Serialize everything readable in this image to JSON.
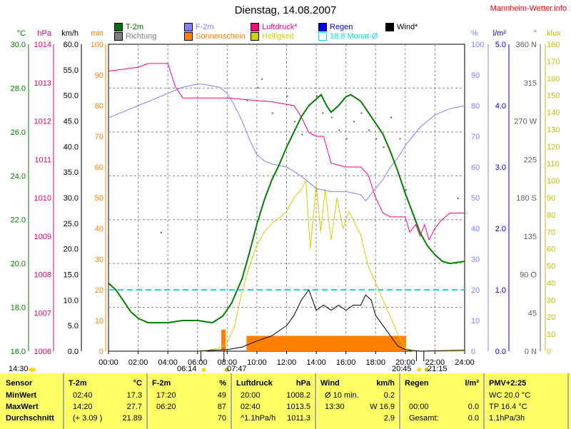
{
  "title": "Dienstag, 14.08.2007",
  "brand": "Mannheim-Wetter.info",
  "legend": [
    {
      "label": "T-2m",
      "color": "#007000"
    },
    {
      "label": "Richtung",
      "color": "#808080"
    },
    {
      "label": "F-2m",
      "color": "#8080ff"
    },
    {
      "label": "Sonnenschein",
      "color": "#ff8000"
    },
    {
      "label": "Luftdruck*",
      "color": "#ff0080"
    },
    {
      "label": "Helligkeit",
      "color": "#d0d000"
    },
    {
      "label": "Regen",
      "color": "#0000ff"
    },
    {
      "label": "18.8 Monat-Ø",
      "color": "#00e0e0"
    },
    {
      "label": "Wind*",
      "color": "#000000"
    }
  ],
  "axes": {
    "celsius": {
      "unit": "°C",
      "ticks": [
        "30.0",
        "28.0",
        "26.0",
        "24.0",
        "22.0",
        "20.0",
        "18.0",
        "16.0"
      ],
      "color": "#008000"
    },
    "hpa": {
      "unit": "hPa",
      "ticks": [
        "1014",
        "1013",
        "1012",
        "1011",
        "1010",
        "1009",
        "1008",
        "1007",
        "1006"
      ],
      "color": "#e00070"
    },
    "kmh": {
      "unit": "km/h",
      "ticks": [
        "60.0",
        "55.0",
        "50.0",
        "45.0",
        "40.0",
        "35.0",
        "30.0",
        "25.0",
        "20.0",
        "15.0",
        "10.0",
        "5.0",
        "0.0"
      ],
      "color": "#000000"
    },
    "min": {
      "unit": "min",
      "ticks": [
        "100",
        "90",
        "80",
        "70",
        "60",
        "50",
        "40",
        "30",
        "20",
        "10",
        "0"
      ],
      "color": "#ff8000"
    },
    "pct": {
      "unit": "%",
      "ticks": [
        "100",
        "90",
        "80",
        "70",
        "60",
        "50",
        "40",
        "30",
        "20",
        "10",
        "0"
      ],
      "color": "#8080ff"
    },
    "lm2": {
      "unit": "l/m²",
      "ticks": [
        "5.0",
        "4.0",
        "3.0",
        "2.0",
        "1.0",
        "0.0"
      ],
      "color": "#0000d0"
    },
    "deg": {
      "unit": "°",
      "ticks": [
        "360 N",
        "315",
        "270 W",
        "225",
        "180 S",
        "135",
        "90 O",
        "45",
        "0 N"
      ],
      "color": "#606060"
    },
    "klux": {
      "unit": "klux",
      "ticks": [
        "180",
        "170",
        "160",
        "150",
        "140",
        "130",
        "120",
        "110",
        "100",
        "90",
        "80",
        "70",
        "60",
        "50",
        "40",
        "30",
        "20",
        "10",
        "0"
      ],
      "color": "#c0c000"
    },
    "x_ticks": [
      "00:00",
      "02:00",
      "04:00",
      "06:00",
      "08:00",
      "10:00",
      "12:00",
      "14:00",
      "16:00",
      "18:00",
      "20:00",
      "22:00",
      "24:00"
    ]
  },
  "sun": {
    "now": "14:30",
    "sunrise": "06:14",
    "civil_am": "07:47",
    "sunset": "20:45",
    "civil_pm": "21:15"
  },
  "chart_data": {
    "type": "line",
    "title": "Dienstag, 14.08.2007",
    "xlim": [
      0,
      24
    ],
    "series": [
      {
        "name": "T-2m",
        "unit": "°C",
        "ylim": [
          16,
          30
        ],
        "points": [
          [
            0,
            19.1
          ],
          [
            0.5,
            18.8
          ],
          [
            1,
            18.3
          ],
          [
            1.5,
            17.8
          ],
          [
            2,
            17.5
          ],
          [
            2.67,
            17.3
          ],
          [
            4,
            17.3
          ],
          [
            5,
            17.4
          ],
          [
            6,
            17.4
          ],
          [
            7,
            17.3
          ],
          [
            7.7,
            17.6
          ],
          [
            8.3,
            18.2
          ],
          [
            9,
            19.3
          ],
          [
            9.5,
            20.5
          ],
          [
            10,
            21.8
          ],
          [
            10.5,
            22.9
          ],
          [
            11,
            23.8
          ],
          [
            11.5,
            24.5
          ],
          [
            12,
            25.3
          ],
          [
            12.5,
            26
          ],
          [
            13,
            26.7
          ],
          [
            13.5,
            27.2
          ],
          [
            14,
            27.5
          ],
          [
            14.33,
            27.7
          ],
          [
            14.7,
            27.2
          ],
          [
            15,
            26.9
          ],
          [
            15.5,
            27.2
          ],
          [
            16,
            27.6
          ],
          [
            16.33,
            27.7
          ],
          [
            17,
            27.4
          ],
          [
            17.5,
            26.9
          ],
          [
            18,
            26.4
          ],
          [
            18.5,
            25.9
          ],
          [
            19,
            25.1
          ],
          [
            19.5,
            24.2
          ],
          [
            20,
            23.2
          ],
          [
            20.5,
            22.3
          ],
          [
            21,
            21.4
          ],
          [
            21.5,
            20.8
          ],
          [
            22,
            20.4
          ],
          [
            22.5,
            20.1
          ],
          [
            23,
            20
          ],
          [
            24,
            20.1
          ]
        ]
      },
      {
        "name": "F-2m",
        "unit": "%",
        "ylim": [
          0,
          100
        ],
        "points": [
          [
            0,
            76
          ],
          [
            1,
            78
          ],
          [
            2,
            80
          ],
          [
            3,
            82
          ],
          [
            4,
            84
          ],
          [
            5,
            86
          ],
          [
            6,
            87
          ],
          [
            6.33,
            87
          ],
          [
            7.5,
            86
          ],
          [
            8,
            84
          ],
          [
            8.5,
            80
          ],
          [
            9,
            75
          ],
          [
            9.5,
            69
          ],
          [
            10,
            64
          ],
          [
            10.5,
            62
          ],
          [
            11,
            61
          ],
          [
            12,
            60
          ],
          [
            13,
            57
          ],
          [
            14,
            53
          ],
          [
            15,
            52
          ],
          [
            16,
            52
          ],
          [
            17,
            51
          ],
          [
            17.33,
            49
          ],
          [
            18,
            53
          ],
          [
            18.5,
            56
          ],
          [
            19,
            60
          ],
          [
            19.5,
            63
          ],
          [
            20,
            67
          ],
          [
            20.5,
            70
          ],
          [
            21,
            73
          ],
          [
            21.5,
            75
          ],
          [
            22,
            77
          ],
          [
            23,
            79
          ],
          [
            24,
            80
          ]
        ]
      },
      {
        "name": "Luftdruck",
        "unit": "hPa",
        "ylim": [
          1006,
          1014
        ],
        "points": [
          [
            0,
            1013.3
          ],
          [
            2,
            1013.4
          ],
          [
            2.67,
            1013.5
          ],
          [
            4,
            1013.5
          ],
          [
            4.5,
            1012.9
          ],
          [
            5,
            1012.6
          ],
          [
            8,
            1012.6
          ],
          [
            11,
            1012.5
          ],
          [
            12.5,
            1012.4
          ],
          [
            13,
            1012.1
          ],
          [
            13.5,
            1011.7
          ],
          [
            14,
            1011.6
          ],
          [
            14.5,
            1011.6
          ],
          [
            15,
            1010.9
          ],
          [
            16,
            1010.8
          ],
          [
            17,
            1010.8
          ],
          [
            17.5,
            1010.6
          ],
          [
            18,
            1010
          ],
          [
            18.5,
            1009.6
          ],
          [
            19,
            1009.5
          ],
          [
            20,
            1009.5
          ],
          [
            20.3,
            1009.1
          ],
          [
            20.7,
            1009.3
          ],
          [
            21,
            1009
          ],
          [
            21.3,
            1009.3
          ],
          [
            21.6,
            1008.9
          ],
          [
            22,
            1009.2
          ],
          [
            22.4,
            1009.4
          ],
          [
            23,
            1009.6
          ],
          [
            24,
            1009.6
          ]
        ]
      },
      {
        "name": "Wind",
        "unit": "km/h",
        "ylim": [
          0,
          60
        ],
        "points": [
          [
            0,
            0
          ],
          [
            6,
            0
          ],
          [
            7,
            0.2
          ],
          [
            8,
            0.3
          ],
          [
            9,
            0.8
          ],
          [
            10,
            2
          ],
          [
            11,
            3
          ],
          [
            12,
            5
          ],
          [
            12.5,
            7
          ],
          [
            13,
            10
          ],
          [
            13.5,
            12
          ],
          [
            14,
            8
          ],
          [
            14.5,
            9
          ],
          [
            15,
            8
          ],
          [
            15.5,
            9
          ],
          [
            16,
            8
          ],
          [
            16.5,
            9
          ],
          [
            17,
            9
          ],
          [
            17.33,
            11
          ],
          [
            17.7,
            10
          ],
          [
            18,
            7
          ],
          [
            18.5,
            5
          ],
          [
            19,
            3
          ],
          [
            19.5,
            1
          ],
          [
            20,
            0.3
          ],
          [
            21,
            0
          ],
          [
            24,
            0.2
          ]
        ]
      },
      {
        "name": "Helligkeit",
        "unit": "klux",
        "ylim": [
          0,
          180
        ],
        "points": [
          [
            0,
            0
          ],
          [
            6.5,
            0
          ],
          [
            7.5,
            2
          ],
          [
            8,
            5
          ],
          [
            8.5,
            15
          ],
          [
            9,
            35
          ],
          [
            9.5,
            50
          ],
          [
            10,
            62
          ],
          [
            10.5,
            70
          ],
          [
            11,
            75
          ],
          [
            11.5,
            78
          ],
          [
            12,
            82
          ],
          [
            12.5,
            90
          ],
          [
            13,
            95
          ],
          [
            13.3,
            100
          ],
          [
            13.6,
            60
          ],
          [
            14,
            98
          ],
          [
            14.3,
            70
          ],
          [
            14.6,
            95
          ],
          [
            15,
            65
          ],
          [
            15.4,
            90
          ],
          [
            15.8,
            72
          ],
          [
            16.2,
            82
          ],
          [
            16.6,
            75
          ],
          [
            17,
            68
          ],
          [
            17.5,
            50
          ],
          [
            18,
            40
          ],
          [
            18.5,
            30
          ],
          [
            19,
            20
          ],
          [
            19.5,
            10
          ],
          [
            20,
            2
          ],
          [
            20.5,
            0
          ],
          [
            24,
            0
          ]
        ]
      }
    ],
    "sunshine_min": {
      "unit": "min",
      "points": [
        [
          7.6,
          7
        ],
        [
          7.8,
          7
        ],
        [
          9.3,
          5
        ],
        [
          20,
          5
        ]
      ]
    },
    "monthly_mean_c": 18.8,
    "direction_deg": [
      [
        3.5,
        140
      ],
      [
        9.3,
        295
      ],
      [
        10,
        310
      ],
      [
        10.3,
        320
      ],
      [
        11,
        280
      ],
      [
        12,
        300
      ],
      [
        12.5,
        270
      ],
      [
        13,
        255
      ],
      [
        13.5,
        290
      ],
      [
        14,
        300
      ],
      [
        14.4,
        280
      ],
      [
        15,
        275
      ],
      [
        15.5,
        260
      ],
      [
        16,
        250
      ],
      [
        16.5,
        270
      ],
      [
        17,
        280
      ],
      [
        17.5,
        260
      ],
      [
        18,
        250
      ],
      [
        18.5,
        240
      ],
      [
        19,
        275
      ],
      [
        19.6,
        250
      ],
      [
        20,
        190
      ],
      [
        23.5,
        180
      ]
    ]
  },
  "table": {
    "headers": [
      [
        "Sensor",
        ""
      ],
      [
        "T-2m",
        "°C"
      ],
      [
        "F-2m",
        "%"
      ],
      [
        "Luftdruck",
        "hPa"
      ],
      [
        "Wind",
        "km/h"
      ],
      [
        "Regen",
        "l/m²"
      ],
      [
        "PMV+2:25",
        ""
      ]
    ],
    "rows": [
      [
        [
          "MinWert",
          ""
        ],
        [
          "02:40",
          "17.3"
        ],
        [
          "17:20",
          "49"
        ],
        [
          "20:00",
          "1008.2"
        ],
        [
          "Ø 10 min.",
          "0.2"
        ],
        [
          "",
          ""
        ],
        [
          "WC 20.0 °C",
          ""
        ]
      ],
      [
        [
          "MaxWert",
          ""
        ],
        [
          "14:20",
          "27.7"
        ],
        [
          "06:20",
          "87"
        ],
        [
          "02:40",
          "1013.5"
        ],
        [
          "13:30",
          "W 16.9"
        ],
        [
          "00:00",
          "0.0"
        ],
        [
          "TP 16.4 °C",
          ""
        ]
      ],
      [
        [
          "Durchschnitt",
          ""
        ],
        [
          "(+ 3.09 )",
          "21.89"
        ],
        [
          "",
          "70"
        ],
        [
          "^1.1hPa/h",
          "1011.3"
        ],
        [
          "",
          "2.9"
        ],
        [
          "Gesamt:",
          "0.0"
        ],
        [
          "1.1hPa/3h",
          ""
        ]
      ]
    ]
  }
}
